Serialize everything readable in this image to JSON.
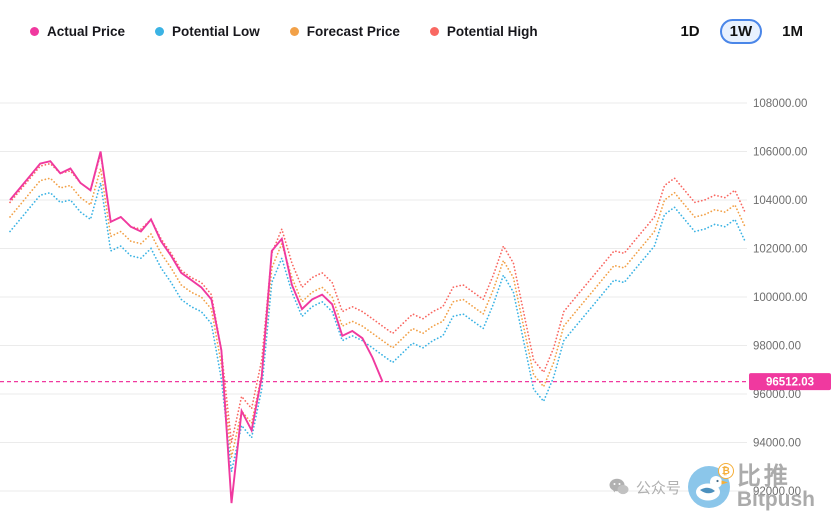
{
  "header": {
    "ranges": [
      {
        "label": "1D",
        "active": false
      },
      {
        "label": "1W",
        "active": true
      },
      {
        "label": "1M",
        "active": false
      }
    ]
  },
  "chart_data": {
    "type": "line",
    "title": "",
    "legend_position": "top-left",
    "grid": "horizontal",
    "y_axis": {
      "min": 91000,
      "max": 109500,
      "ticks": [
        108000,
        106000,
        104000,
        102000,
        100000,
        98000,
        96000,
        94000,
        92000
      ],
      "tick_labels": [
        "108000.00",
        "106000.00",
        "104000.00",
        "102000.00",
        "100000.00",
        "98000.00",
        "96000.00",
        "94000.00",
        "92000.00"
      ]
    },
    "reference_line": {
      "value": 96512.03,
      "label": "96512.03",
      "color": "#f0399f"
    },
    "series": [
      {
        "name": "Actual Price",
        "color": "#f0399f",
        "style": "solid",
        "values": [
          104000,
          104500,
          105000,
          105500,
          105600,
          105100,
          105300,
          104700,
          104400,
          106000,
          103100,
          103300,
          102900,
          102700,
          103200,
          102300,
          101700,
          101000,
          100700,
          100400,
          99900,
          97800,
          91500,
          95300,
          94500,
          96700,
          101900,
          102400,
          100500,
          99500,
          99900,
          100100,
          99700,
          98400,
          98600,
          98300,
          97500,
          96512.03,
          null,
          null,
          null,
          null,
          null,
          null,
          null,
          null,
          null,
          null,
          null,
          null,
          null,
          null,
          null,
          null,
          null,
          null,
          null,
          null,
          null,
          null,
          null,
          null,
          null,
          null,
          null,
          null,
          null,
          null,
          null,
          null,
          null,
          null,
          null,
          null
        ]
      },
      {
        "name": "Potential Low",
        "color": "#3bb3e4",
        "style": "dotted",
        "values": [
          102700,
          103200,
          103700,
          104200,
          104300,
          103900,
          104000,
          103500,
          103200,
          104700,
          101900,
          102100,
          101700,
          101600,
          102000,
          101200,
          100600,
          99900,
          99600,
          99400,
          98900,
          96600,
          92800,
          94700,
          94200,
          96200,
          100600,
          101600,
          100200,
          99200,
          99600,
          99800,
          99400,
          98200,
          98400,
          98200,
          97900,
          97600,
          97300,
          97700,
          98100,
          97900,
          98200,
          98400,
          99200,
          99300,
          99000,
          98700,
          99700,
          100900,
          100200,
          98200,
          96200,
          95700,
          96700,
          98200,
          98700,
          99200,
          99700,
          100200,
          100700,
          100600,
          101100,
          101600,
          102100,
          103400,
          103700,
          103200,
          102700,
          102800,
          103000,
          102900,
          103200,
          102300
        ]
      },
      {
        "name": "Forecast Price",
        "color": "#f2a148",
        "style": "dotted",
        "values": [
          103300,
          103800,
          104300,
          104800,
          104900,
          104500,
          104600,
          104100,
          103800,
          105300,
          102500,
          102700,
          102300,
          102200,
          102600,
          101800,
          101200,
          100500,
          100200,
          100000,
          99500,
          97200,
          93400,
          95300,
          94800,
          96800,
          101200,
          102200,
          100800,
          99800,
          100200,
          100400,
          100000,
          98800,
          99000,
          98800,
          98500,
          98200,
          97900,
          98300,
          98700,
          98500,
          98800,
          99000,
          99800,
          99900,
          99600,
          99300,
          100300,
          101500,
          100800,
          98800,
          96800,
          96300,
          97300,
          98800,
          99300,
          99800,
          100300,
          100800,
          101300,
          101200,
          101700,
          102200,
          102700,
          104000,
          104300,
          103800,
          103300,
          103400,
          103600,
          103500,
          103800,
          102900
        ]
      },
      {
        "name": "Potential High",
        "color": "#f96862",
        "style": "dotted",
        "values": [
          103900,
          104400,
          104900,
          105400,
          105500,
          105100,
          105200,
          104700,
          104400,
          105900,
          103100,
          103300,
          102900,
          102800,
          103200,
          102400,
          101800,
          101100,
          100800,
          100600,
          100100,
          97800,
          94000,
          95900,
          95400,
          97400,
          101800,
          102800,
          101400,
          100400,
          100800,
          101000,
          100600,
          99400,
          99600,
          99400,
          99100,
          98800,
          98500,
          98900,
          99300,
          99100,
          99400,
          99600,
          100400,
          100500,
          100200,
          99900,
          100900,
          102100,
          101400,
          99400,
          97400,
          96900,
          97900,
          99400,
          99900,
          100400,
          100900,
          101400,
          101900,
          101800,
          102300,
          102800,
          103300,
          104600,
          104900,
          104400,
          103900,
          104000,
          104200,
          104100,
          104400,
          103500
        ]
      }
    ]
  },
  "watermark": {
    "wechat_label": "公众号",
    "brand_cn": "比推",
    "brand_en": "Bitpush"
  }
}
